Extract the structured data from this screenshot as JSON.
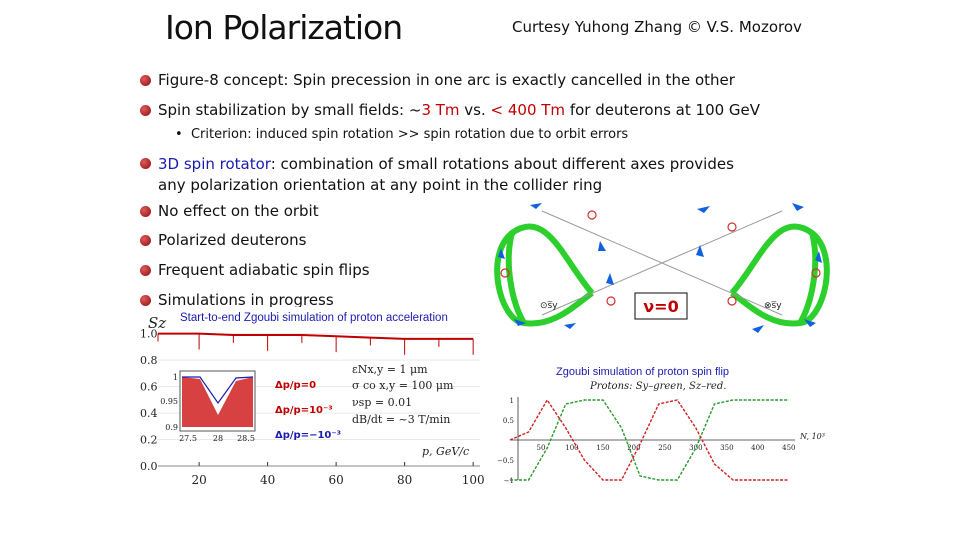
{
  "slide": {
    "title": "Ion Polarization",
    "credit": "Curtesy Yuhong Zhang © V.S. Mozorov"
  },
  "bullets": {
    "b1": "Figure-8 concept: Spin precession in one arc is exactly cancelled in the other",
    "b2_pre": "Spin stabilization by small fields: ~",
    "b2_red1": "3 Tm",
    "b2_mid": " vs. ",
    "b2_red2": "< 400 Tm",
    "b2_post": " for deuterons at 100 GeV",
    "sub1": "Criterion: induced spin rotation >> spin rotation due to orbit errors",
    "b3_blue": "3D spin rotator",
    "b3_rest": ": combination of small rotations about different axes provides",
    "b3_line2": "any polarization orientation at any point in the collider ring",
    "b4": "No effect on the orbit",
    "b5": "Polarized deuterons",
    "b6": "Frequent adiabatic spin flips",
    "b7": "Simulations in progress"
  },
  "figure8": {
    "nu_label": "ν=0",
    "sy_left": "⊙s̅y",
    "sy_right": "⊗s̅y",
    "colors": {
      "ring": "#2ccf2c",
      "spin": "#1060e0",
      "marker": "#d03030"
    }
  },
  "left_plot": {
    "caption": "Start-to-end Zgoubi simulation of proton acceleration",
    "ylabel": "Sz",
    "xlabel": "p, GeV/c",
    "yticks": [
      "1.0",
      "0.8",
      "0.6",
      "0.4",
      "0.2",
      "0.0"
    ],
    "xticks": [
      "20",
      "40",
      "60",
      "80",
      "100"
    ],
    "inset": {
      "yticks": [
        "1",
        "0.95",
        "0.9"
      ],
      "xticks": [
        "27.5",
        "28",
        "28.5"
      ],
      "legend": [
        "Δp/p=0",
        "Δp/p=10⁻³",
        "Δp/p=−10⁻³"
      ]
    },
    "params": [
      "εNx,y = 1 μm",
      "σ co x,y = 100 μm",
      "νsp = 0.01",
      "dB/dt = ~3 T/min"
    ]
  },
  "right_plot": {
    "caption": "Zgoubi simulation of proton spin flip",
    "header": "Protons: Sy–green, Sz–red.",
    "yticks": [
      "1",
      "0.5",
      "−0.5",
      "−1"
    ],
    "xticks": [
      "50",
      "100",
      "150",
      "200",
      "250",
      "300",
      "350",
      "400",
      "450"
    ],
    "xlabel": "N, 10³",
    "colors": {
      "sy": "#2a9a2a",
      "sz": "#d02020"
    }
  },
  "chart_data": [
    {
      "type": "line",
      "title": "Start-to-end Zgoubi simulation of proton acceleration",
      "xlabel": "p, GeV/c",
      "ylabel": "Sz",
      "xlim": [
        8,
        102
      ],
      "ylim": [
        0,
        1.05
      ],
      "series": [
        {
          "name": "",
          "x": [
            8,
            20,
            30,
            40,
            50,
            60,
            70,
            80,
            90,
            100
          ],
          "values": [
            1.0,
            1.0,
            0.99,
            0.99,
            0.99,
            0.98,
            0.97,
            0.96,
            0.96,
            0.96
          ]
        }
      ]
    },
    {
      "type": "line",
      "title": "Protons: Sy–green, Sz–red.",
      "xlabel": "N, 10³",
      "ylim": [
        -1,
        1
      ],
      "xlim": [
        0,
        460
      ],
      "series": [
        {
          "name": "Sy",
          "x": [
            0,
            30,
            60,
            90,
            120,
            150,
            180,
            210,
            240,
            270,
            300,
            330,
            360,
            390,
            420,
            450
          ],
          "values": [
            -1,
            -1,
            -0.2,
            0.9,
            1,
            1,
            0.3,
            -0.9,
            -1,
            -1,
            -0.2,
            0.9,
            1,
            1,
            1,
            1
          ]
        },
        {
          "name": "Sz",
          "x": [
            0,
            30,
            60,
            90,
            120,
            150,
            180,
            210,
            240,
            270,
            300,
            330,
            360,
            390,
            420,
            450
          ],
          "values": [
            0,
            0.2,
            1,
            0.3,
            -0.5,
            -1,
            -1,
            -0.1,
            0.9,
            1,
            0.3,
            -0.6,
            -1,
            -1,
            -1,
            -1
          ]
        }
      ]
    }
  ]
}
